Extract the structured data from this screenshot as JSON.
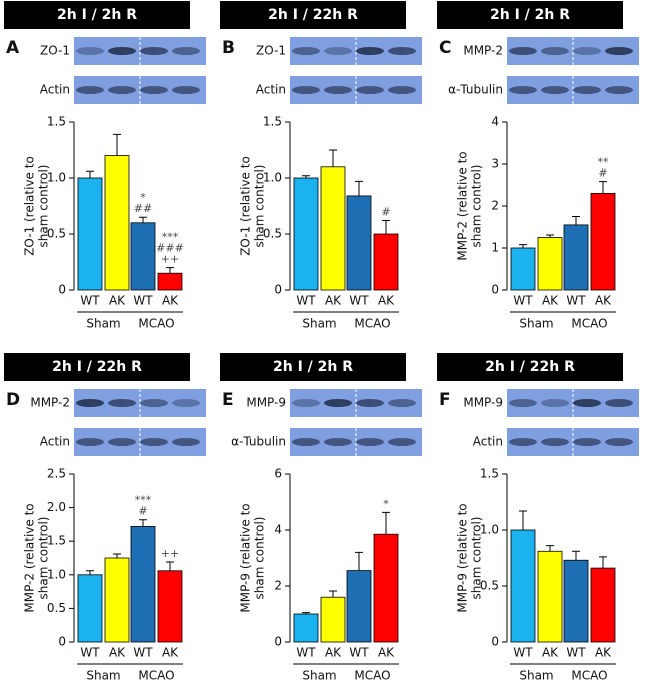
{
  "chart_data": [
    {
      "type": "bar",
      "header": "2h I / 2h R",
      "panel": "A",
      "blots": [
        "ZO-1",
        "Actin"
      ],
      "ylabel": [
        "ZO-1 (relative to",
        "sham control)"
      ],
      "categories": [
        "WT",
        "AK",
        "WT",
        "AK"
      ],
      "groups": [
        "Sham",
        "MCAO"
      ],
      "values": [
        1.0,
        1.2,
        0.6,
        0.15
      ],
      "errors": [
        0.06,
        0.19,
        0.05,
        0.05
      ],
      "colors": [
        "#1ab2ef",
        "#ffff00",
        "#1f6fb5",
        "#ff0000"
      ],
      "annotations": [
        null,
        null,
        [
          "*",
          "##"
        ],
        [
          "***",
          "###",
          "++"
        ]
      ],
      "ylim": [
        0,
        1.5
      ],
      "yticks": [
        0,
        0.5,
        {
          "value": 1,
          "label": "1.0"
        },
        1.5
      ]
    },
    {
      "type": "bar",
      "header": "2h I / 22h R",
      "panel": "B",
      "blots": [
        "ZO-1",
        "Actin"
      ],
      "ylabel": [
        "ZO-1 (relative to",
        "sham control)"
      ],
      "categories": [
        "WT",
        "AK",
        "WT",
        "AK"
      ],
      "groups": [
        "Sham",
        "MCAO"
      ],
      "values": [
        1.0,
        1.1,
        0.84,
        0.5
      ],
      "errors": [
        0.02,
        0.15,
        0.13,
        0.12
      ],
      "colors": [
        "#1ab2ef",
        "#ffff00",
        "#1f6fb5",
        "#ff0000"
      ],
      "annotations": [
        null,
        null,
        null,
        [
          "#"
        ]
      ],
      "ylim": [
        0,
        1.5
      ],
      "yticks": [
        0,
        0.5,
        {
          "value": 1,
          "label": "1.0"
        },
        1.5
      ]
    },
    {
      "type": "bar",
      "header": "2h I / 2h R",
      "panel": "C",
      "blots": [
        "MMP-2",
        "α-Tubulin"
      ],
      "ylabel": [
        "MMP-2 (relative to",
        "sham control)"
      ],
      "categories": [
        "WT",
        "AK",
        "WT",
        "AK"
      ],
      "groups": [
        "Sham",
        "MCAO"
      ],
      "values": [
        1.0,
        1.25,
        1.55,
        2.3
      ],
      "errors": [
        0.08,
        0.06,
        0.2,
        0.28
      ],
      "colors": [
        "#1ab2ef",
        "#ffff00",
        "#1f6fb5",
        "#ff0000"
      ],
      "annotations": [
        null,
        null,
        null,
        [
          "**",
          "#"
        ]
      ],
      "ylim": [
        0,
        4
      ],
      "yticks": [
        0,
        1,
        2,
        3,
        4
      ]
    },
    {
      "type": "bar",
      "header": "2h I / 22h R",
      "panel": "D",
      "blots": [
        "MMP-2",
        "Actin"
      ],
      "ylabel": [
        "MMP-2 (relative to",
        "sham control)"
      ],
      "categories": [
        "WT",
        "AK",
        "WT",
        "AK"
      ],
      "groups": [
        "Sham",
        "MCAO"
      ],
      "values": [
        1.0,
        1.25,
        1.72,
        1.06
      ],
      "errors": [
        0.06,
        0.06,
        0.1,
        0.13
      ],
      "colors": [
        "#1ab2ef",
        "#ffff00",
        "#1f6fb5",
        "#ff0000"
      ],
      "annotations": [
        null,
        null,
        [
          "***",
          "#"
        ],
        [
          "++"
        ]
      ],
      "ylim": [
        0,
        2.5
      ],
      "yticks": [
        0,
        0.5,
        {
          "value": 1,
          "label": "1.0"
        },
        1.5,
        {
          "value": 2,
          "label": "2.0"
        },
        2.5
      ]
    },
    {
      "type": "bar",
      "header": "2h I / 2h R",
      "panel": "E",
      "blots": [
        "MMP-9",
        "α-Tubulin"
      ],
      "ylabel": [
        "MMP-9 (relative to",
        "sham control)"
      ],
      "categories": [
        "WT",
        "AK",
        "WT",
        "AK"
      ],
      "groups": [
        "Sham",
        "MCAO"
      ],
      "values": [
        1.0,
        1.6,
        2.55,
        3.85
      ],
      "errors": [
        0.05,
        0.22,
        0.65,
        0.78
      ],
      "colors": [
        "#1ab2ef",
        "#ffff00",
        "#1f6fb5",
        "#ff0000"
      ],
      "annotations": [
        null,
        null,
        null,
        [
          "*"
        ]
      ],
      "ylim": [
        0,
        6
      ],
      "yticks": [
        0,
        2,
        4,
        6
      ]
    },
    {
      "type": "bar",
      "header": "2h I / 22h R",
      "panel": "F",
      "blots": [
        "MMP-9",
        "Actin"
      ],
      "ylabel": [
        "MMP-9 (relative to",
        "sham control)"
      ],
      "categories": [
        "WT",
        "AK",
        "WT",
        "AK"
      ],
      "groups": [
        "Sham",
        "MCAO"
      ],
      "values": [
        1.0,
        0.81,
        0.73,
        0.66
      ],
      "errors": [
        0.17,
        0.05,
        0.08,
        0.1
      ],
      "colors": [
        "#1ab2ef",
        "#ffff00",
        "#1f6fb5",
        "#ff0000"
      ],
      "annotations": [
        null,
        null,
        null,
        null
      ],
      "ylim": [
        0,
        1.5
      ],
      "yticks": [
        0,
        0.5,
        {
          "value": 1,
          "label": "1.0"
        },
        1.5
      ]
    }
  ]
}
